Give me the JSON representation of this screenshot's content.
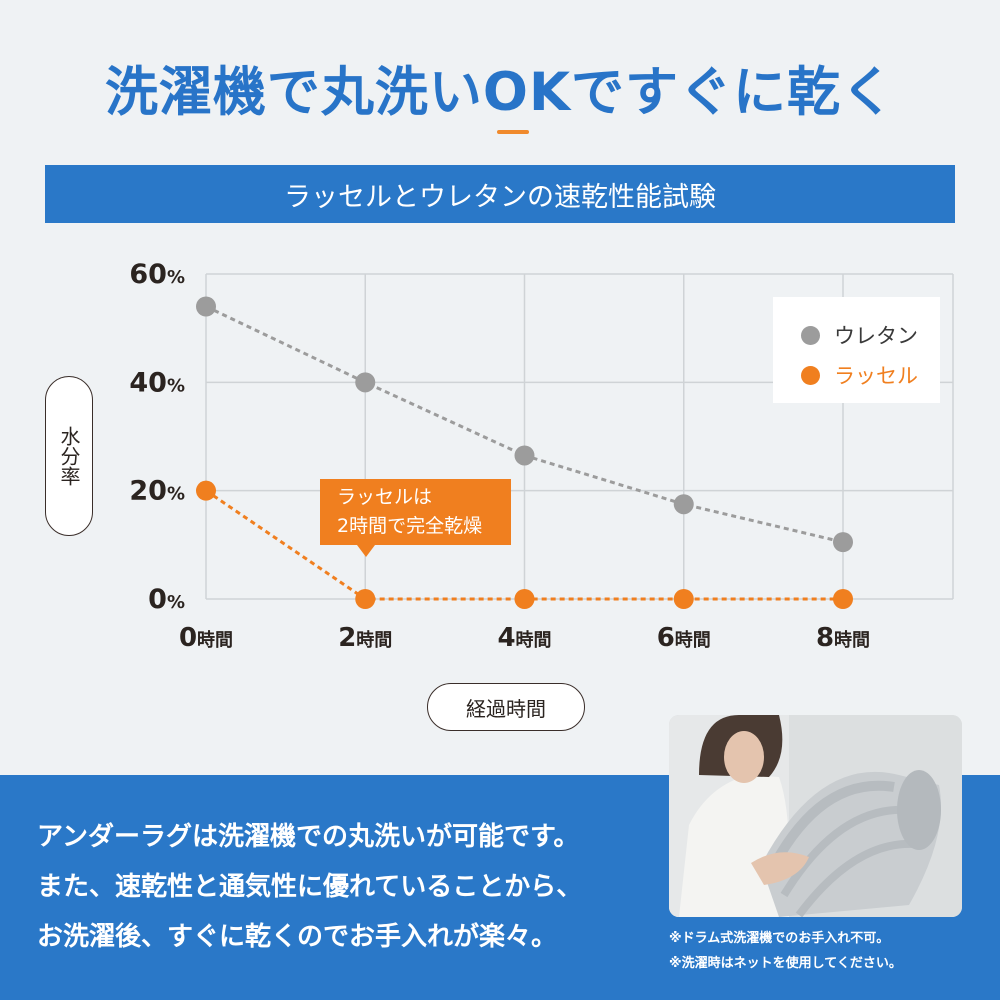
{
  "headline": "洗濯機で丸洗いOKですぐに乾く",
  "banner_title": "ラッセルとウレタンの速乾性能試験",
  "colors": {
    "accent_blue": "#2a78c8",
    "accent_orange": "#f07f1f",
    "gray_series": "#9c9c9c",
    "grid": "#cfd3d6",
    "background": "#eff2f4"
  },
  "chart_data": {
    "type": "line",
    "categories": [
      "0時間",
      "2時間",
      "4時間",
      "6時間",
      "8時間"
    ],
    "series": [
      {
        "name": "ウレタン",
        "color": "#9c9c9c",
        "values": [
          54,
          40,
          26.5,
          17.5,
          10.5
        ]
      },
      {
        "name": "ラッセル",
        "color": "#f07f1f",
        "values": [
          20,
          0,
          0,
          0,
          0
        ]
      }
    ],
    "y_ticks": [
      "0%",
      "20%",
      "40%",
      "60%"
    ],
    "ylim": [
      0,
      60
    ],
    "ylabel": "水分率",
    "xlabel": "経過時間",
    "legend_position": "top-right",
    "grid": true,
    "line_style": "dotted",
    "annotation": {
      "line1": "ラッセルは",
      "line2": "2時間で完全乾燥"
    }
  },
  "body_lines": [
    "アンダーラグは洗濯機での丸洗いが可能です。",
    "また、速乾性と通気性に優れていることから、",
    "お洗濯後、すぐに乾くのでお手入れが楽々。"
  ],
  "notes": [
    "※ドラム式洗濯機でのお手入れ不可。",
    "※洗濯時はネットを使用してください。"
  ]
}
